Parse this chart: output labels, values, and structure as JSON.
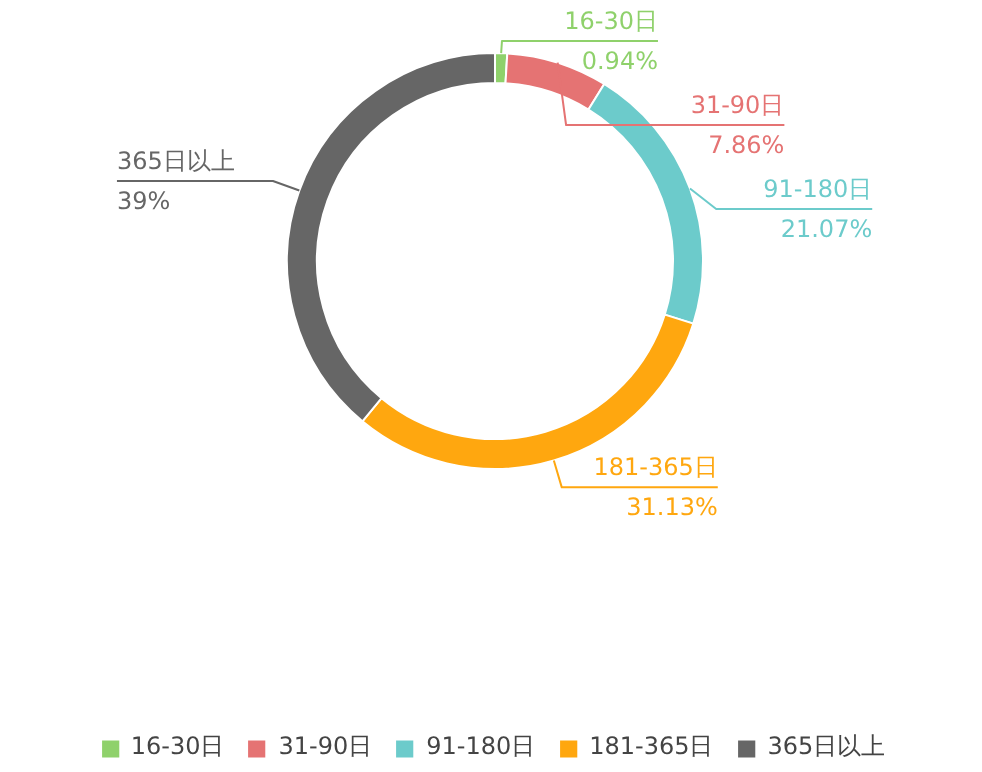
{
  "chart_data": {
    "type": "donut",
    "categories": [
      "16-30日",
      "31-90日",
      "91-180日",
      "181-365日",
      "365日以上"
    ],
    "values": [
      0.94,
      7.86,
      21.07,
      31.13,
      39
    ],
    "colors": [
      "#8fd16b",
      "#e57373",
      "#6ccbcb",
      "#ffa70f",
      "#666666"
    ],
    "value_labels": [
      "0.94%",
      "7.86%",
      "21.07%",
      "31.13%",
      "39%"
    ],
    "legend": "bottom"
  }
}
